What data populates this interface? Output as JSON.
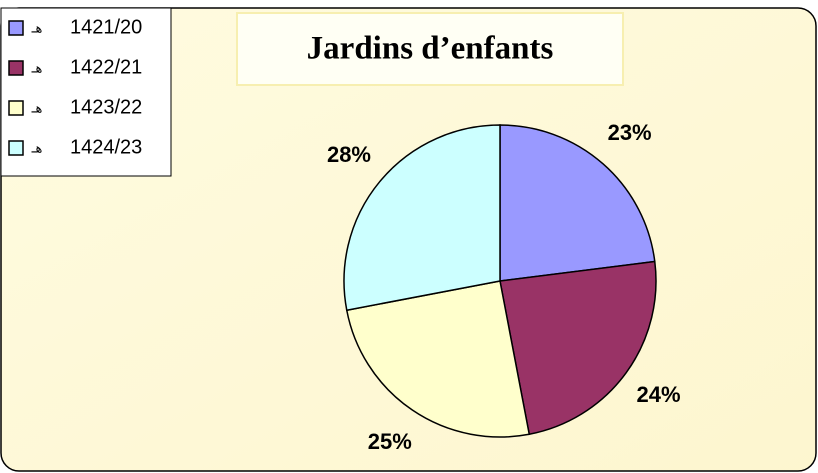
{
  "chart_data": {
    "type": "pie",
    "title": "Jardins d’enfants",
    "legend_prefix": "هـ",
    "categories": [
      "1421/20",
      "1422/21",
      "1423/22",
      "1424/23"
    ],
    "values": [
      23,
      24,
      25,
      28
    ],
    "value_labels": [
      "23%",
      "24%",
      "25%",
      "28%"
    ],
    "colors": [
      "#9999ff",
      "#993366",
      "#ffffcc",
      "#ccffff"
    ],
    "legend": "top-left"
  }
}
